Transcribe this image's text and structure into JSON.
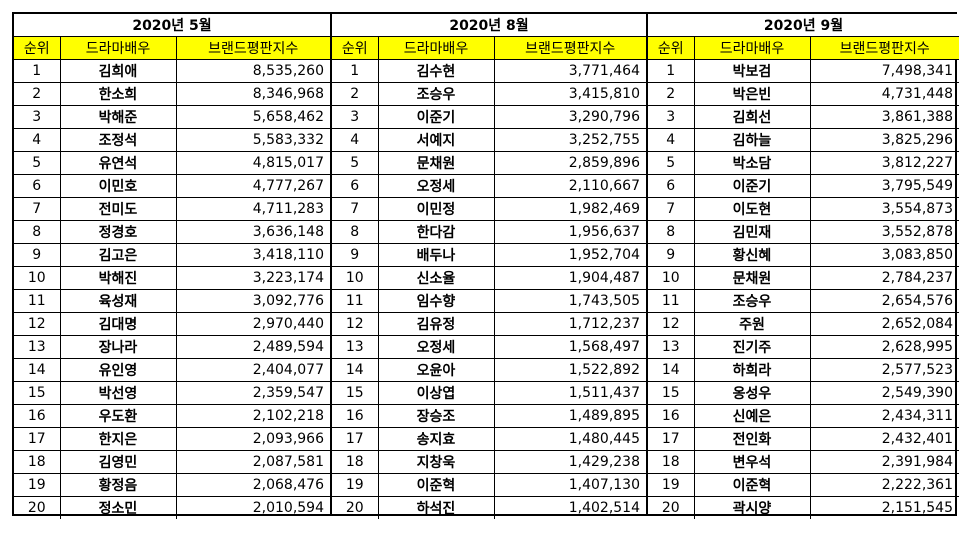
{
  "headers": {
    "rank": "순위",
    "actor": "드라마배우",
    "index": "브랜드평판지수"
  },
  "highlight_color": "#ffff00",
  "periods": [
    {
      "title": "2020년 5월",
      "rows": [
        {
          "rank": "1",
          "name": "김희애",
          "value": "8,535,260"
        },
        {
          "rank": "2",
          "name": "한소희",
          "value": "8,346,968"
        },
        {
          "rank": "3",
          "name": "박해준",
          "value": "5,658,462"
        },
        {
          "rank": "4",
          "name": "조정석",
          "value": "5,583,332"
        },
        {
          "rank": "5",
          "name": "유연석",
          "value": "4,815,017"
        },
        {
          "rank": "6",
          "name": "이민호",
          "value": "4,777,267"
        },
        {
          "rank": "7",
          "name": "전미도",
          "value": "4,711,283"
        },
        {
          "rank": "8",
          "name": "정경호",
          "value": "3,636,148"
        },
        {
          "rank": "9",
          "name": "김고은",
          "value": "3,418,110"
        },
        {
          "rank": "10",
          "name": "박해진",
          "value": "3,223,174"
        },
        {
          "rank": "11",
          "name": "육성재",
          "value": "3,092,776"
        },
        {
          "rank": "12",
          "name": "김대명",
          "value": "2,970,440"
        },
        {
          "rank": "13",
          "name": "장나라",
          "value": "2,489,594"
        },
        {
          "rank": "14",
          "name": "유인영",
          "value": "2,404,077"
        },
        {
          "rank": "15",
          "name": "박선영",
          "value": "2,359,547"
        },
        {
          "rank": "16",
          "name": "우도환",
          "value": "2,102,218"
        },
        {
          "rank": "17",
          "name": "한지은",
          "value": "2,093,966"
        },
        {
          "rank": "18",
          "name": "김영민",
          "value": "2,087,581"
        },
        {
          "rank": "19",
          "name": "황정음",
          "value": "2,068,476"
        },
        {
          "rank": "20",
          "name": "정소민",
          "value": "2,010,594"
        }
      ]
    },
    {
      "title": "2020년 8월",
      "rows": [
        {
          "rank": "1",
          "name": "김수현",
          "value": "3,771,464"
        },
        {
          "rank": "2",
          "name": "조승우",
          "value": "3,415,810"
        },
        {
          "rank": "3",
          "name": "이준기",
          "value": "3,290,796"
        },
        {
          "rank": "4",
          "name": "서예지",
          "value": "3,252,755"
        },
        {
          "rank": "5",
          "name": "문채원",
          "value": "2,859,896"
        },
        {
          "rank": "6",
          "name": "오정세",
          "value": "2,110,667"
        },
        {
          "rank": "7",
          "name": "이민정",
          "value": "1,982,469"
        },
        {
          "rank": "8",
          "name": "한다감",
          "value": "1,956,637"
        },
        {
          "rank": "9",
          "name": "배두나",
          "value": "1,952,704"
        },
        {
          "rank": "10",
          "name": "신소율",
          "value": "1,904,487"
        },
        {
          "rank": "11",
          "name": "임수향",
          "value": "1,743,505"
        },
        {
          "rank": "12",
          "name": "김유정",
          "value": "1,712,237"
        },
        {
          "rank": "13",
          "name": "오정세",
          "value": "1,568,497"
        },
        {
          "rank": "14",
          "name": "오윤아",
          "value": "1,522,892"
        },
        {
          "rank": "15",
          "name": "이상엽",
          "value": "1,511,437"
        },
        {
          "rank": "16",
          "name": "장승조",
          "value": "1,489,895"
        },
        {
          "rank": "17",
          "name": "송지효",
          "value": "1,480,445"
        },
        {
          "rank": "18",
          "name": "지창욱",
          "value": "1,429,238"
        },
        {
          "rank": "19",
          "name": "이준혁",
          "value": "1,407,130"
        },
        {
          "rank": "20",
          "name": "하석진",
          "value": "1,402,514"
        }
      ]
    },
    {
      "title": "2020년 9월",
      "rows": [
        {
          "rank": "1",
          "name": "박보검",
          "value": "7,498,341"
        },
        {
          "rank": "2",
          "name": "박은빈",
          "value": "4,731,448"
        },
        {
          "rank": "3",
          "name": "김희선",
          "value": "3,861,388"
        },
        {
          "rank": "4",
          "name": "김하늘",
          "value": "3,825,296"
        },
        {
          "rank": "5",
          "name": "박소담",
          "value": "3,812,227"
        },
        {
          "rank": "6",
          "name": "이준기",
          "value": "3,795,549"
        },
        {
          "rank": "7",
          "name": "이도현",
          "value": "3,554,873"
        },
        {
          "rank": "8",
          "name": "김민재",
          "value": "3,552,878"
        },
        {
          "rank": "9",
          "name": "황신혜",
          "value": "3,083,850"
        },
        {
          "rank": "10",
          "name": "문채원",
          "value": "2,784,237"
        },
        {
          "rank": "11",
          "name": "조승우",
          "value": "2,654,576"
        },
        {
          "rank": "12",
          "name": "주원",
          "value": "2,652,084"
        },
        {
          "rank": "13",
          "name": "진기주",
          "value": "2,628,995"
        },
        {
          "rank": "14",
          "name": "하희라",
          "value": "2,577,523"
        },
        {
          "rank": "15",
          "name": "옹성우",
          "value": "2,549,390"
        },
        {
          "rank": "16",
          "name": "신예은",
          "value": "2,434,311"
        },
        {
          "rank": "17",
          "name": "전인화",
          "value": "2,432,401"
        },
        {
          "rank": "18",
          "name": "변우석",
          "value": "2,391,984"
        },
        {
          "rank": "19",
          "name": "이준혁",
          "value": "2,222,361"
        },
        {
          "rank": "20",
          "name": "곽시양",
          "value": "2,151,545"
        }
      ]
    }
  ]
}
